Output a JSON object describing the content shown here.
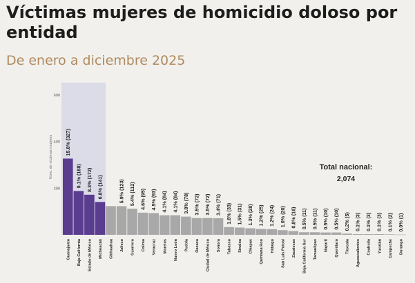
{
  "header": {
    "title": "Víctimas mujeres de homicidio doloso por entidad",
    "subtitle": "De enero a diciembre 2025"
  },
  "chart_data": {
    "type": "bar",
    "ylabel": "Núm. de víctimas mujeres",
    "ylim": [
      0,
      600
    ],
    "yticks": [
      200,
      400,
      600
    ],
    "highlight_color": "#5a3d8f",
    "bar_color": "#a8a8a8",
    "highlight_band_color": "#dcdbe8",
    "highlighted_categories": [
      "Guanajuato",
      "Baja California",
      "Estado de México",
      "Michoacán"
    ],
    "categories": [
      "Guanajuato",
      "Baja California",
      "Estado de México",
      "Michoacán",
      "Chihuahua",
      "Jalisco",
      "Guerrero",
      "Colima",
      "Veracruz",
      "Morelos",
      "Nuevo León",
      "Puebla",
      "Oaxaca",
      "Ciudad de México",
      "Sonora",
      "Tabasco",
      "Sinaloa",
      "Chiapas",
      "Quintana Roo",
      "Hidalgo",
      "San Luis Potosí",
      "Zacatecas",
      "Baja California Sur",
      "Tamaulipas",
      "Nayarit",
      "Querétaro",
      "Tlaxcala",
      "Aguascalientes",
      "Coahuila",
      "Yucatán",
      "Campeche",
      "Durango"
    ],
    "values": [
      327,
      188,
      172,
      141,
      123,
      123,
      112,
      95,
      93,
      84,
      84,
      78,
      72,
      72,
      71,
      33,
      31,
      28,
      25,
      24,
      20,
      16,
      11,
      11,
      10,
      10,
      5,
      3,
      3,
      3,
      2,
      1
    ],
    "labels": [
      "15.8% (327)",
      "9.1% (188)",
      "8.3% (172)",
      "6.8% (141)",
      "",
      "5.9% (123)",
      "5.4% (112)",
      "4.6% (95)",
      "4.5% (93)",
      "4.1% (84)",
      "4.1% (84)",
      "3.8% (78)",
      "3.5% (72)",
      "3.5% (72)",
      "3.4% (71)",
      "1.6% (33)",
      "1.5% (31)",
      "1.3% (28)",
      "1.2% (25)",
      "1.2% (24)",
      "1.0% (20)",
      "0.8% (16)",
      "0.5% (11)",
      "0.5% (11)",
      "0.5% (10)",
      "0.5% (10)",
      "0.2% (5)",
      "0.1% (3)",
      "0.1% (3)",
      "0.1% (3)",
      "0.1% (2)",
      "0.0% (1)"
    ],
    "annotation": {
      "title": "Total nacional:",
      "value": "2,074"
    }
  }
}
